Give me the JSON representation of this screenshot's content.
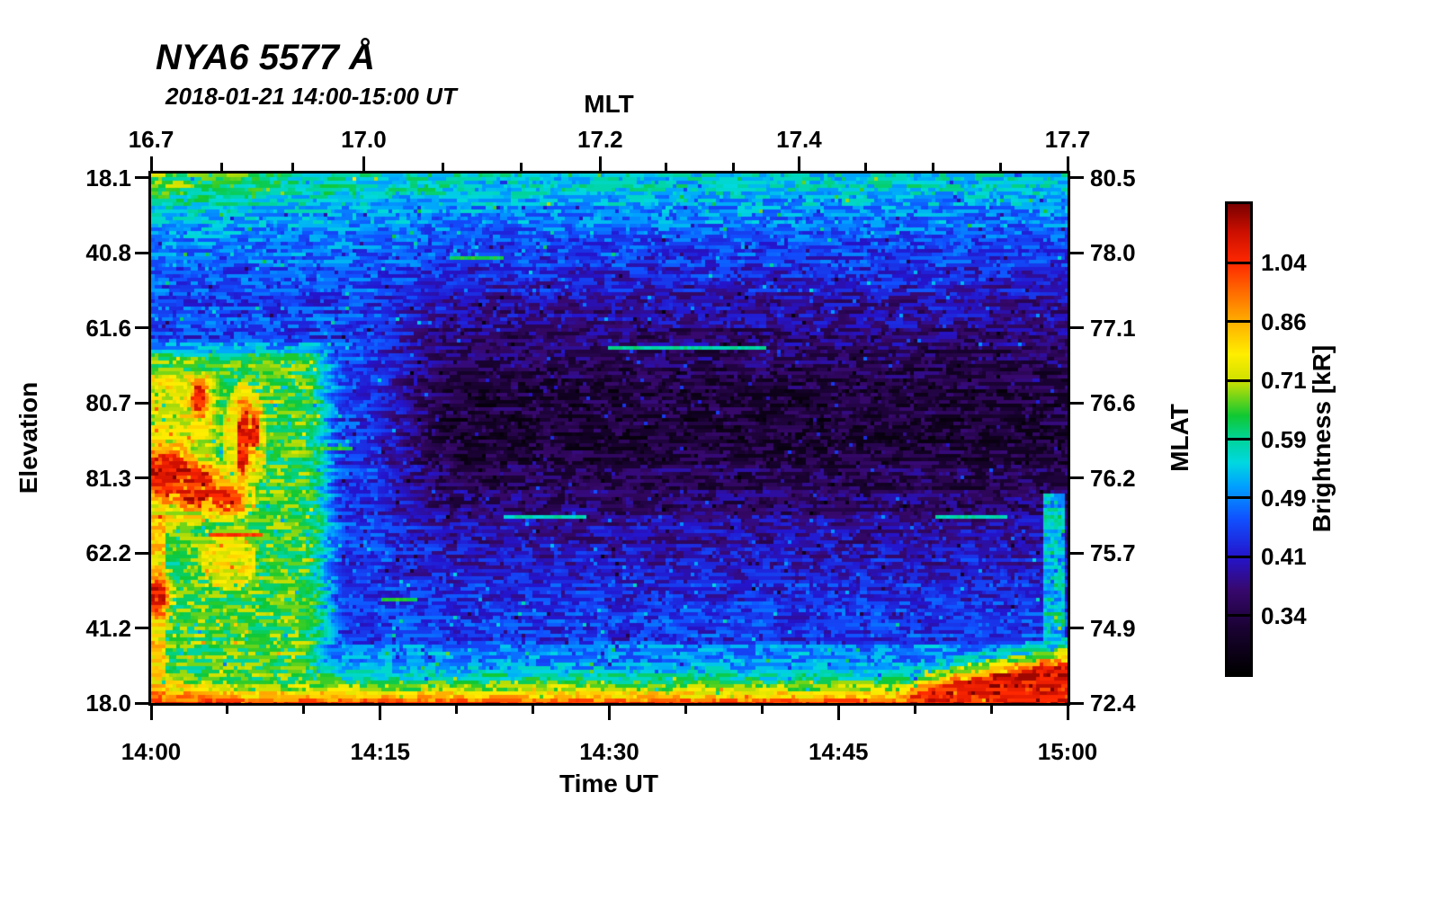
{
  "title": "NYA6 5577 Å",
  "subtitle": "2018-01-21 14:00-15:00 UT",
  "chart_data": {
    "type": "heatmap",
    "title": "NYA6 5577 Å",
    "subtitle": "2018-01-21 14:00-15:00 UT",
    "description": "Meridian-scanning photometer keogram of 557.7 nm auroral brightness vs time (14:00-15:00 UT) and elevation angle, with MLT on the top axis and MLAT on the right axis. Bright red/yellow auroral structures near the start (14:00-14:10) at mid elevations, a persistent bright red band along the low-elevation bottom edge thickening after 14:45, cyan/green diffuse glow at the top edge, and a dark low-brightness core in the centre.",
    "bottom_axis": {
      "label": "Time UT",
      "major_ticks": [
        {
          "label": "14:00",
          "f": 0.0
        },
        {
          "label": "14:15",
          "f": 0.25
        },
        {
          "label": "14:30",
          "f": 0.5
        },
        {
          "label": "14:45",
          "f": 0.75
        },
        {
          "label": "15:00",
          "f": 1.0
        }
      ],
      "minor_fractions": [
        0.0833,
        0.1667,
        0.3333,
        0.4167,
        0.5833,
        0.6667,
        0.8333,
        0.9167
      ]
    },
    "top_axis": {
      "label": "MLT",
      "major_ticks": [
        {
          "label": "16.7",
          "f": 0.0
        },
        {
          "label": "17.0",
          "f": 0.232
        },
        {
          "label": "17.2",
          "f": 0.49
        },
        {
          "label": "17.4",
          "f": 0.707
        },
        {
          "label": "17.7",
          "f": 1.0
        }
      ],
      "minor_fractions": [
        0.077,
        0.155,
        0.318,
        0.404,
        0.562,
        0.635,
        0.78,
        0.853,
        0.927
      ]
    },
    "left_axis": {
      "label": "Elevation",
      "ticks": [
        {
          "label": "18.1",
          "f": 0.008
        },
        {
          "label": "40.8",
          "f": 0.1497
        },
        {
          "label": "61.6",
          "f": 0.2915
        },
        {
          "label": "80.7",
          "f": 0.4332
        },
        {
          "label": "81.3",
          "f": 0.575
        },
        {
          "label": "62.2",
          "f": 0.7167
        },
        {
          "label": "41.2",
          "f": 0.8584
        },
        {
          "label": "18.0",
          "f": 1.0
        }
      ]
    },
    "right_axis": {
      "label": "MLAT",
      "ticks": [
        {
          "label": "80.5",
          "f": 0.008
        },
        {
          "label": "78.0",
          "f": 0.1497
        },
        {
          "label": "77.1",
          "f": 0.2915
        },
        {
          "label": "76.6",
          "f": 0.4332
        },
        {
          "label": "76.2",
          "f": 0.575
        },
        {
          "label": "75.7",
          "f": 0.7167
        },
        {
          "label": "74.9",
          "f": 0.8584
        },
        {
          "label": "72.4",
          "f": 1.0
        }
      ]
    },
    "colorbar": {
      "label": "Brightness [kR]",
      "tick_labels": [
        "1.04",
        "0.86",
        "0.71",
        "0.59",
        "0.49",
        "0.41",
        "0.34"
      ],
      "segments": 8
    },
    "colormap_stops": [
      [
        0.0,
        "#000000"
      ],
      [
        0.1,
        "#1a0233"
      ],
      [
        0.18,
        "#37086e"
      ],
      [
        0.25,
        "#2414cc"
      ],
      [
        0.33,
        "#1050ff"
      ],
      [
        0.4,
        "#00a0ff"
      ],
      [
        0.45,
        "#00d8e0"
      ],
      [
        0.5,
        "#00d49a"
      ],
      [
        0.55,
        "#10c832"
      ],
      [
        0.625,
        "#cfe000"
      ],
      [
        0.68,
        "#ffee00"
      ],
      [
        0.75,
        "#ffae00"
      ],
      [
        0.875,
        "#ff2800"
      ],
      [
        0.94,
        "#cc0f00"
      ],
      [
        1.0,
        "#7a0000"
      ]
    ],
    "heatmap_model": {
      "cell": 4,
      "seed": 1337,
      "base": 0.3,
      "noise": 0.15,
      "top_band": {
        "amp": 0.17,
        "decay": 0.11,
        "pow": 1.3,
        "green_amp": 0.15,
        "green_fy": 0.09,
        "green_fx": 0.16
      },
      "dark_center": {
        "depth": 0.2,
        "cy": 0.46,
        "sy": 0.23,
        "x0": 0.22,
        "x1": 0.34
      },
      "bottom_band": {
        "h": 0.115,
        "pow": 2.6,
        "t": 0.92,
        "floor": 0.38,
        "left_mult": 0.8,
        "left_scale": 0.05
      },
      "right_dome": {
        "x0": 0.82,
        "h": 0.08,
        "pow": 0.5,
        "t": 0.91
      },
      "left_field": {
        "x1": 0.165,
        "soft": 0.05,
        "y0": 0.3,
        "ysoft": 0.06,
        "green_t": 0.56,
        "yellow": {
          "x1": 0.09,
          "y0": 0.34,
          "y1": 0.7,
          "t": 0.66
        },
        "left_col": {
          "x1": 0.017,
          "y0": 0.55,
          "y1": 0.95,
          "t": 0.7
        }
      },
      "right_col": {
        "x0": 0.972,
        "x1": 0.995,
        "y0": 0.6,
        "y1": 0.88,
        "t": 0.44
      },
      "red_blobs": [
        [
          0.052,
          0.423,
          0.007,
          0.026
        ],
        [
          0.0986,
          0.509,
          0.0035,
          0.063
        ],
        [
          0.1048,
          0.494,
          0.0032,
          0.052
        ],
        [
          0.1128,
          0.482,
          0.0045,
          0.03
        ],
        [
          0.018,
          0.565,
          0.024,
          0.04
        ],
        [
          0.048,
          0.588,
          0.021,
          0.032
        ],
        [
          0.082,
          0.61,
          0.016,
          0.022
        ],
        [
          0.006,
          0.793,
          0.01,
          0.028
        ]
      ],
      "yellow_zones": [
        [
          0.085,
          0.73,
          0.03,
          0.055,
          0.68
        ],
        [
          0.102,
          0.5,
          0.024,
          0.105,
          0.7
        ],
        [
          0.052,
          0.42,
          0.014,
          0.04,
          0.72
        ]
      ],
      "streaks": [
        {
          "fy": 0.326,
          "x0": 0.5,
          "x1": 0.672,
          "t": 0.5
        },
        {
          "fy": 0.516,
          "x0": 0.112,
          "x1": 0.218,
          "t": 0.56
        },
        {
          "fy": 0.642,
          "x0": 0.385,
          "x1": 0.473,
          "t": 0.48
        },
        {
          "fy": 0.642,
          "x0": 0.856,
          "x1": 0.934,
          "t": 0.48
        },
        {
          "fy": 0.796,
          "x0": 0.252,
          "x1": 0.291,
          "t": 0.54
        },
        {
          "fy": 0.153,
          "x0": 0.325,
          "x1": 0.385,
          "t": 0.54
        },
        {
          "fy": 0.677,
          "x0": 0.062,
          "x1": 0.121,
          "t": 0.86
        }
      ]
    }
  }
}
